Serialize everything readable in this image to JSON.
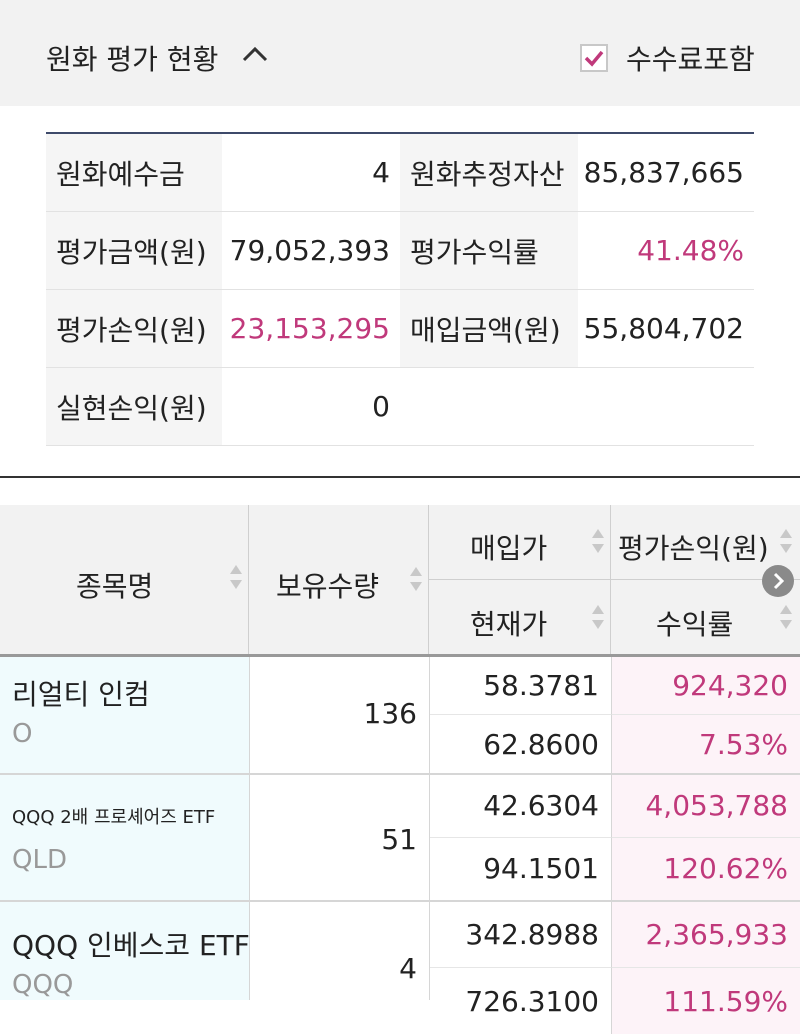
{
  "header": {
    "title": "원화 평가 현황",
    "chevron_icon": "chevron-up-icon",
    "fee_checkbox_label": "수수료포함",
    "fee_checked": true,
    "check_color": "#c0397b"
  },
  "summary": {
    "rows": [
      [
        {
          "label": "원화예수금",
          "value": "4"
        },
        {
          "label": "원화추정자산",
          "value": "85,837,665"
        }
      ],
      [
        {
          "label": "평가금액(원)",
          "value": "79,052,393"
        },
        {
          "label": "평가수익률",
          "value": "41.48%"
        }
      ],
      [
        {
          "label": "평가손익(원)",
          "value": "23,153,295"
        },
        {
          "label": "매입금액(원)",
          "value": "55,804,702"
        }
      ],
      [
        {
          "label": "실현손익(원)",
          "value": "0"
        },
        {
          "label": "",
          "value": ""
        }
      ]
    ]
  },
  "table": {
    "headers": {
      "name": "종목명",
      "qty": "보유수량",
      "buy_price": "매입가",
      "current_price": "현재가",
      "pl": "평가손익(원)",
      "return_rate": "수익률"
    },
    "rows": [
      {
        "name": "리얼티 인컴",
        "ticker": "O",
        "qty": "136",
        "buy_price": "58.3781",
        "current_price": "62.8600",
        "pl": "924,320",
        "return_rate": "7.53%"
      },
      {
        "name": "QQQ 2배 프로셰어즈 ETF",
        "ticker": "QLD",
        "qty": "51",
        "buy_price": "42.6304",
        "current_price": "94.1501",
        "pl": "4,053,788",
        "return_rate": "120.62%"
      },
      {
        "name": "QQQ 인베스코 ETF",
        "ticker": "QQQ",
        "qty": "4",
        "buy_price": "342.8988",
        "current_price": "726.3100",
        "pl": "2,365,933",
        "return_rate": "111.59%"
      }
    ]
  }
}
